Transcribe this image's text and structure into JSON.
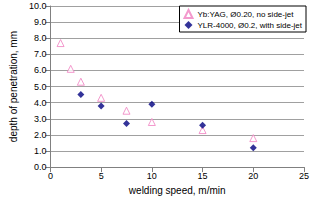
{
  "chart_data": {
    "type": "scatter",
    "x_label": "welding speed, m/min",
    "y_label": "depth of penetration, mm",
    "xlim": [
      0,
      25
    ],
    "xticks": [
      0,
      5,
      10,
      15,
      20,
      25
    ],
    "ylim": [
      0,
      10
    ],
    "yticks": [
      {
        "value": 0,
        "label": "0.0"
      },
      {
        "value": 1,
        "label": "1.0"
      },
      {
        "value": 2,
        "label": "2.0"
      },
      {
        "value": 3,
        "label": "3.0"
      },
      {
        "value": 4,
        "label": "4.0"
      },
      {
        "value": 5,
        "label": "5.0"
      },
      {
        "value": 6,
        "label": "6.0"
      },
      {
        "value": 7,
        "label": "7.0"
      },
      {
        "value": 8,
        "label": "8.0"
      },
      {
        "value": 9,
        "label": "9.0"
      },
      {
        "value": 10,
        "label": "10.0"
      }
    ],
    "grid": true,
    "legend": "upper right",
    "series": [
      {
        "name": "Yb:YAG, Ø0.20, no side-jet",
        "color": "#f080c0",
        "marker": "open-triangle",
        "x": [
          1,
          2,
          3,
          5,
          7.5,
          10,
          15,
          20
        ],
        "values": [
          7.7,
          6.1,
          5.3,
          4.3,
          3.5,
          2.8,
          2.3,
          1.8
        ]
      },
      {
        "name": "YLR-4000, Ø0.2, with side-jet",
        "color": "#000080",
        "marker": "diamond",
        "x": [
          3,
          5,
          7.5,
          10,
          15,
          20
        ],
        "values": [
          4.5,
          3.8,
          2.7,
          3.9,
          2.6,
          1.2
        ]
      }
    ]
  }
}
